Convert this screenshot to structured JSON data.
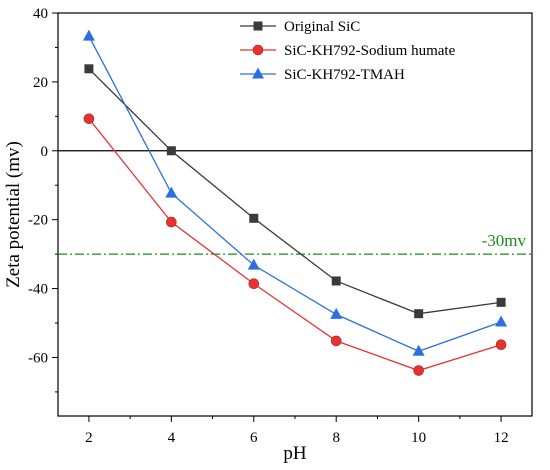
{
  "chart_data": {
    "type": "line",
    "title": "",
    "xlabel": "pH",
    "ylabel": "Zeta potential (mv)",
    "xlim": [
      1.25,
      12.75
    ],
    "ylim": [
      -77,
      40
    ],
    "xticks": [
      2,
      4,
      6,
      8,
      10,
      12
    ],
    "yticks": [
      -60,
      -40,
      -20,
      0,
      20,
      40
    ],
    "x": [
      2,
      4,
      6,
      8,
      10,
      12
    ],
    "grid": false,
    "legend_position": "top-right",
    "series": [
      {
        "name": "Original SiC",
        "marker": "square",
        "color": "#3a3a3a",
        "values": [
          23.8,
          0,
          -19.6,
          -37.8,
          -47.3,
          -44.0
        ]
      },
      {
        "name": "SiC-KH792-Sodium humate",
        "marker": "circle",
        "color": "#e8322f",
        "values": [
          9.3,
          -20.7,
          -38.6,
          -55.2,
          -63.8,
          -56.3
        ]
      },
      {
        "name": "SiC-KH792-TMAH",
        "marker": "triangle",
        "color": "#2c6fe0",
        "values": [
          33.3,
          -12.3,
          -33.2,
          -47.5,
          -58.2,
          -49.7
        ]
      }
    ],
    "reference_lines": [
      {
        "y": 0,
        "color": "#000000",
        "style": "solid",
        "label": ""
      },
      {
        "y": -30,
        "color": "#1b8a1b",
        "style": "dash-dot",
        "label": "-30mv"
      }
    ]
  }
}
